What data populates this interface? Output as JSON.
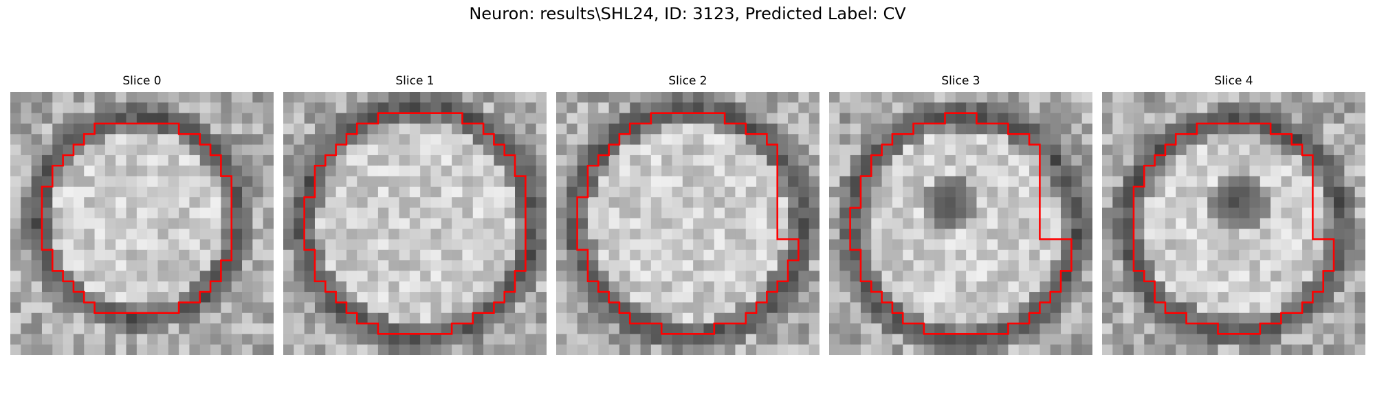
{
  "figure": {
    "title": "Neuron: results\\SHL24, ID: 3123, Predicted Label: CV"
  },
  "panels": [
    {
      "title": "Slice 0",
      "content": "grayscale microscopy crop of a cell with red contour outline"
    },
    {
      "title": "Slice 1",
      "content": "grayscale microscopy crop of a cell with red contour outline"
    },
    {
      "title": "Slice 2",
      "content": "grayscale microscopy crop of a cell with red contour outline"
    },
    {
      "title": "Slice 3",
      "content": "grayscale microscopy crop of a cell with red contour outline"
    },
    {
      "title": "Slice 4",
      "content": "grayscale microscopy crop of a cell with red contour outline"
    }
  ],
  "colors": {
    "contour": "#ff0000",
    "background": "#ffffff"
  }
}
